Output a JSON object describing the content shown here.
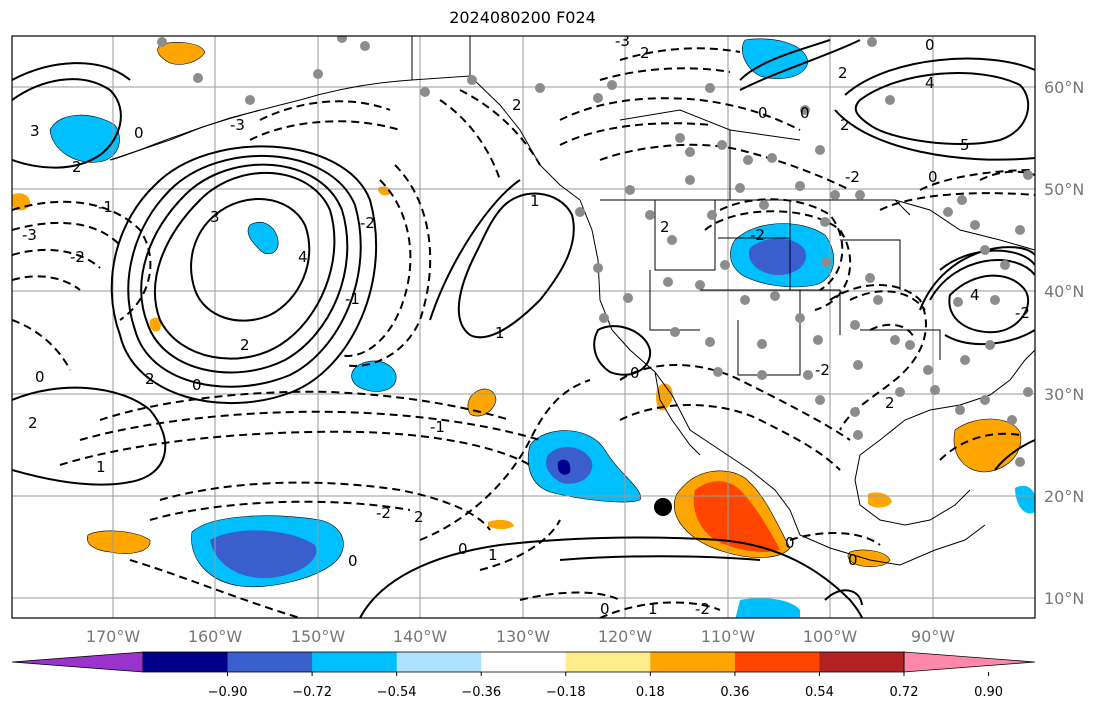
{
  "title": "2024080200 F024",
  "map": {
    "lon_range": [
      -180,
      -80
    ],
    "lat_range": [
      8,
      65
    ],
    "gridlines": true,
    "lon_labels": [
      "170°W",
      "160°W",
      "150°W",
      "140°W",
      "130°W",
      "120°W",
      "110°W",
      "100°W",
      "90°W"
    ],
    "lat_labels": [
      "60°N",
      "50°N",
      "40°N",
      "30°N",
      "20°N",
      "10°N"
    ],
    "marker": {
      "lon": -116.3,
      "lat": 19.1
    },
    "contour_labels": [
      "0",
      "2",
      "-2",
      "-1",
      "1",
      "3",
      "-3",
      "4",
      "5"
    ]
  },
  "colorbar": {
    "colors": [
      "#9933cc",
      "#00008b",
      "#3a5fcd",
      "#00bfff",
      "#b0e2ff",
      "#ffffff",
      "#ffec8b",
      "#ffa500",
      "#ff4500",
      "#b22222",
      "#ff88aa"
    ],
    "ticks": [
      "−0.90",
      "−0.72",
      "−0.54",
      "−0.36",
      "−0.18",
      "0.18",
      "0.36",
      "0.54",
      "0.72",
      "0.90"
    ]
  },
  "colors": {
    "gridline": "#9a9a9a",
    "coast": "#000000",
    "station_dot": "#8c8c8c"
  }
}
